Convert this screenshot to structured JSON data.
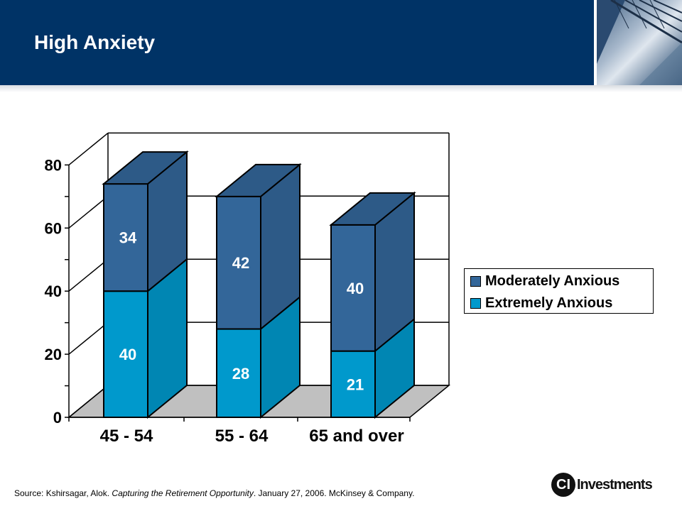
{
  "slide": {
    "title": "High Anxiety",
    "source": {
      "prefix": "Source: Kshirsagar, Alok. ",
      "publication": "Capturing the Retirement Opportunity",
      "suffix": ". January 27, 2006. McKinsey & Company."
    },
    "logo": {
      "mark": "CI",
      "text": "Investments"
    }
  },
  "chart_data": {
    "type": "bar",
    "stacked": true,
    "three_d": true,
    "categories": [
      "45 - 54",
      "55 - 64",
      "65 and over"
    ],
    "series": [
      {
        "name": "Extremely Anxious",
        "values": [
          40,
          28,
          21
        ],
        "color": "#0099CC",
        "side_color": "#0086B3"
      },
      {
        "name": "Moderately Anxious",
        "values": [
          34,
          42,
          40
        ],
        "color": "#336699",
        "side_color": "#2D5A87"
      }
    ],
    "yticks": [
      0,
      20,
      40,
      60,
      80
    ],
    "ylim": [
      0,
      80
    ],
    "grid": true,
    "legend": {
      "placement": "right",
      "entries": [
        "Moderately Anxious",
        "Extremely Anxious"
      ]
    },
    "colors": {
      "floor": "#c0c0c0",
      "grid": "#000000"
    }
  }
}
